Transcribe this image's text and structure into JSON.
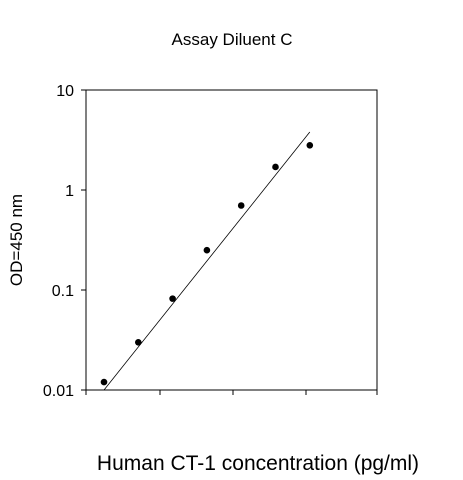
{
  "chart_data": {
    "type": "scatter",
    "title": "Assay Diluent C",
    "xlabel": "Human CT-1 concentration (pg/ml)",
    "ylabel": "OD=450 nm",
    "y_scale": "log",
    "ylim": [
      0.01,
      10
    ],
    "y_ticks": [
      {
        "value": 0.01,
        "label": "0.01"
      },
      {
        "value": 0.1,
        "label": "0.1"
      },
      {
        "value": 1,
        "label": "1"
      },
      {
        "value": 10,
        "label": "10"
      }
    ],
    "x_tick_labels_shown": false,
    "grid": false,
    "marker_color": "#000000",
    "series": [
      {
        "points": [
          {
            "x": 1,
            "y": 0.012
          },
          {
            "x": 2,
            "y": 0.03
          },
          {
            "x": 3,
            "y": 0.082
          },
          {
            "x": 4,
            "y": 0.25
          },
          {
            "x": 5,
            "y": 0.7
          },
          {
            "x": 6,
            "y": 1.7
          },
          {
            "x": 7,
            "y": 2.8
          }
        ]
      }
    ],
    "fit_line": {
      "from": {
        "x": 1,
        "y": 0.01
      },
      "to": {
        "x": 7,
        "y": 3.8
      }
    }
  }
}
